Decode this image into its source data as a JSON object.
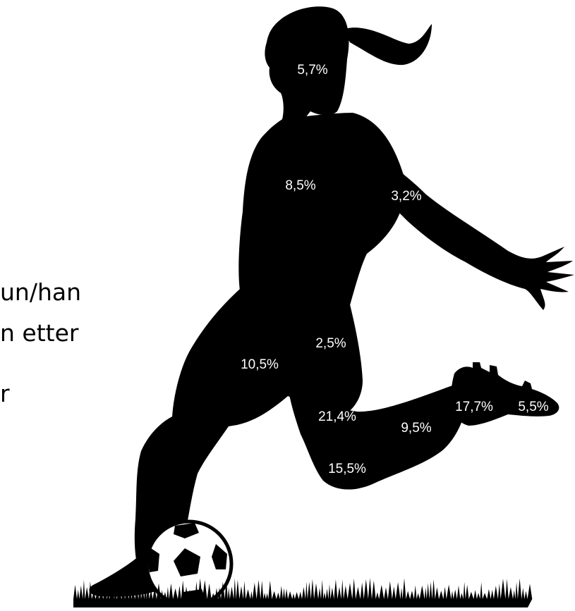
{
  "colors": {
    "silhouette": "#000000",
    "label_text": "#ffffff",
    "background": "#ffffff",
    "ball_panels": "#000000"
  },
  "side_text": {
    "line1": "un/han",
    "line2": "n etter",
    "line3": "r"
  },
  "injury_labels": {
    "head": "5,7%",
    "torso": "8,5%",
    "arm": "3,2%",
    "groin": "2,5%",
    "thigh": "10,5%",
    "knee": "21,4%",
    "lower_leg": "15,5%",
    "calf": "9,5%",
    "ankle": "17,7%",
    "foot": "5,5%"
  },
  "chart_data": {
    "type": "diagram",
    "values": [
      {
        "region": "head",
        "percent": 5.7
      },
      {
        "region": "torso",
        "percent": 8.5
      },
      {
        "region": "arm",
        "percent": 3.2
      },
      {
        "region": "groin",
        "percent": 2.5
      },
      {
        "region": "thigh",
        "percent": 10.5
      },
      {
        "region": "knee",
        "percent": 21.4
      },
      {
        "region": "lower_leg",
        "percent": 15.5
      },
      {
        "region": "calf",
        "percent": 9.5
      },
      {
        "region": "ankle",
        "percent": 17.7
      },
      {
        "region": "foot",
        "percent": 5.5
      }
    ]
  }
}
